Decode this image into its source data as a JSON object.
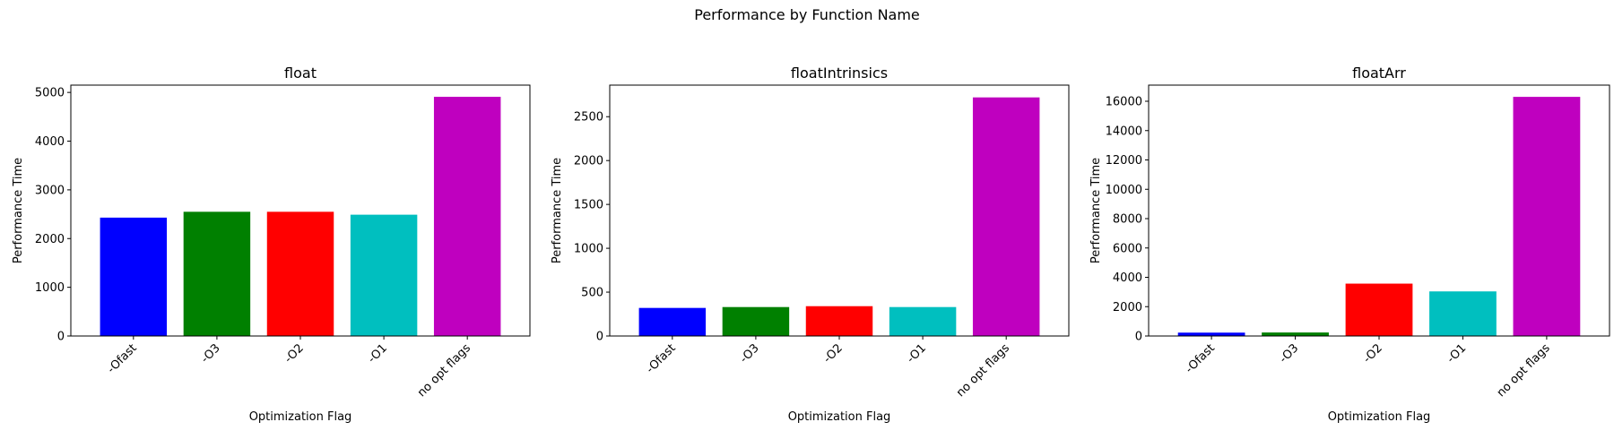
{
  "suptitle": "Performance by Function Name",
  "chart_data": [
    {
      "type": "bar",
      "title": "float",
      "xlabel": "Optimization Flag",
      "ylabel": "Performance Time",
      "categories": [
        "-Ofast",
        "-O3",
        "-O2",
        "-O1",
        "no opt flags"
      ],
      "values": [
        2430,
        2550,
        2550,
        2490,
        4910
      ],
      "colors": [
        "#0000ff",
        "#008000",
        "#ff0000",
        "#00bfbf",
        "#bf00bf"
      ],
      "ylim": [
        0,
        5150
      ],
      "yticks": [
        0,
        1000,
        2000,
        3000,
        4000,
        5000
      ],
      "grid": false
    },
    {
      "type": "bar",
      "title": "floatIntrinsics",
      "xlabel": "Optimization Flag",
      "ylabel": "Performance Time",
      "categories": [
        "-Ofast",
        "-O3",
        "-O2",
        "-O1",
        "no opt flags"
      ],
      "values": [
        320,
        330,
        340,
        330,
        2720
      ],
      "colors": [
        "#0000ff",
        "#008000",
        "#ff0000",
        "#00bfbf",
        "#bf00bf"
      ],
      "ylim": [
        0,
        2860
      ],
      "yticks": [
        0,
        500,
        1000,
        1500,
        2000,
        2500
      ],
      "grid": false
    },
    {
      "type": "bar",
      "title": "floatArr",
      "xlabel": "Optimization Flag",
      "ylabel": "Performance Time",
      "categories": [
        "-Ofast",
        "-O3",
        "-O2",
        "-O1",
        "no opt flags"
      ],
      "values": [
        230,
        240,
        3570,
        3040,
        16300
      ],
      "colors": [
        "#0000ff",
        "#008000",
        "#ff0000",
        "#00bfbf",
        "#bf00bf"
      ],
      "ylim": [
        0,
        17100
      ],
      "yticks": [
        0,
        2000,
        4000,
        6000,
        8000,
        10000,
        12000,
        14000,
        16000
      ],
      "grid": false
    }
  ]
}
